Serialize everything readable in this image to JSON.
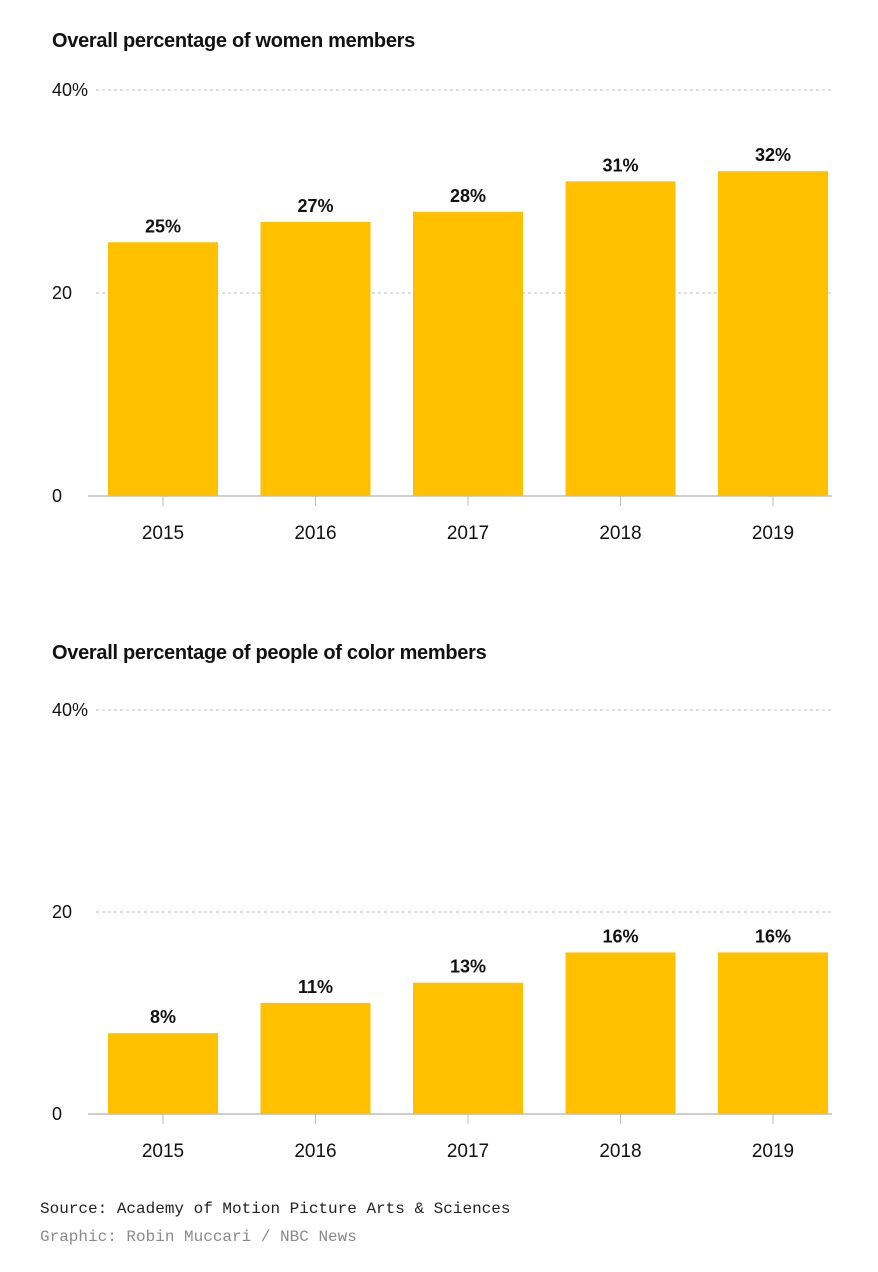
{
  "chart_data": [
    {
      "type": "bar",
      "title": "Overall percentage of women members",
      "categories": [
        "2015",
        "2016",
        "2017",
        "2018",
        "2019"
      ],
      "values": [
        25,
        27,
        28,
        31,
        32
      ],
      "data_labels": [
        "25%",
        "27%",
        "28%",
        "31%",
        "32%"
      ],
      "ylim": [
        0,
        40
      ],
      "yticks": [
        0,
        20,
        40
      ],
      "ytick_labels": [
        "0",
        "20",
        "40%"
      ],
      "xlabel": "",
      "ylabel": "",
      "grid": true,
      "bar_color": "#FFC000"
    },
    {
      "type": "bar",
      "title": "Overall percentage of people of color members",
      "categories": [
        "2015",
        "2016",
        "2017",
        "2018",
        "2019"
      ],
      "values": [
        8,
        11,
        13,
        16,
        16
      ],
      "data_labels": [
        "8%",
        "11%",
        "13%",
        "16%",
        "16%"
      ],
      "ylim": [
        0,
        40
      ],
      "yticks": [
        0,
        20,
        40
      ],
      "ytick_labels": [
        "0",
        "20",
        "40%"
      ],
      "xlabel": "",
      "ylabel": "",
      "grid": true,
      "bar_color": "#FFC000"
    }
  ],
  "footer": {
    "source": "Source: Academy of Motion Picture Arts & Sciences",
    "credit": "Graphic: Robin Muccari / NBC News"
  }
}
